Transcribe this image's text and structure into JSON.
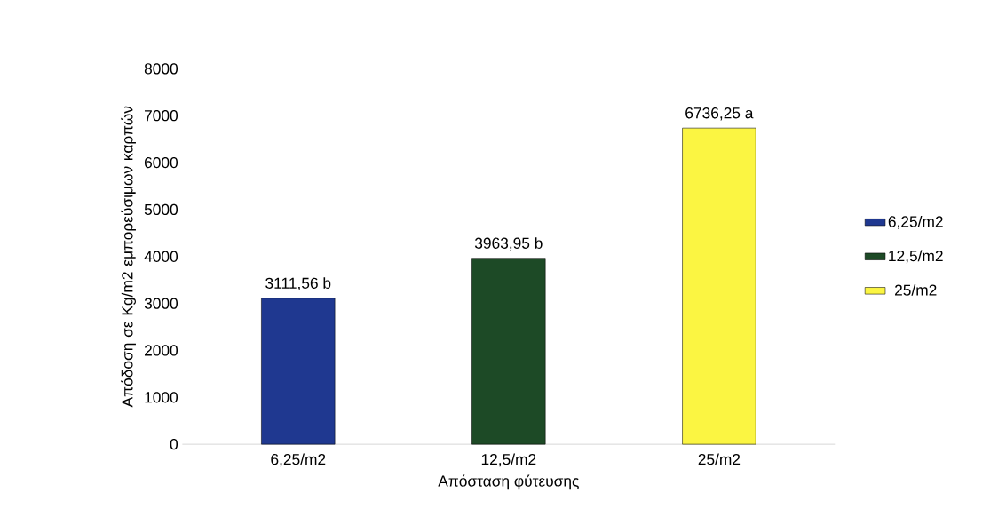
{
  "chart_data": {
    "type": "bar",
    "xlabel": "Απόσταση  φύτευσης",
    "ylabel": "Απόδοση σε Kg/m2 εμπορεύσιμων καρπών",
    "categories": [
      "6,25/m2",
      "12,5/m2",
      "25/m2"
    ],
    "series": [
      {
        "name": "6,25/m2",
        "color": "#1f3890",
        "values": [
          3111.56,
          null,
          null
        ],
        "value_labels": [
          "3111,56 b",
          null,
          null
        ]
      },
      {
        "name": "12,5/m2",
        "color": "#1d4a26",
        "values": [
          null,
          3963.95,
          null
        ],
        "value_labels": [
          null,
          "3963,95 b",
          null
        ]
      },
      {
        "name": "25/m2",
        "color": "#fbf542",
        "values": [
          null,
          null,
          6736.25
        ],
        "value_labels": [
          null,
          null,
          "6736,25 a"
        ]
      }
    ],
    "ylim": [
      0,
      8000
    ],
    "yticks": [
      0,
      1000,
      2000,
      3000,
      4000,
      5000,
      6000,
      7000,
      8000
    ],
    "legend": "right",
    "grid": false
  }
}
